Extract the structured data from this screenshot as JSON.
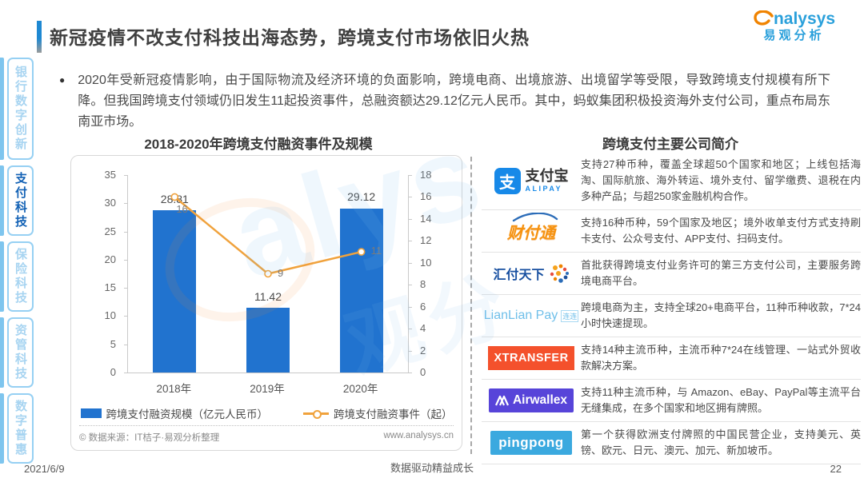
{
  "header": {
    "title": "新冠疫情不改支付科技出海态势，跨境支付市场依旧火热",
    "logo": {
      "brand": "nalysys",
      "brand_cn": "易观分析"
    }
  },
  "sidebar": {
    "items": [
      {
        "label": "银行数字创新",
        "active": false
      },
      {
        "label": "支付科技",
        "active": true
      },
      {
        "label": "保险科技",
        "active": false
      },
      {
        "label": "资管科技",
        "active": false
      },
      {
        "label": "数字普惠",
        "active": false
      }
    ]
  },
  "summary": {
    "bullet": "●",
    "text": "2020年受新冠疫情影响，由于国际物流及经济环境的负面影响，跨境电商、出境旅游、出境留学等受限，导致跨境支付规模有所下降。但我国跨境支付领域仍旧发生11起投资事件，总融资额达29.12亿元人民币。其中，蚂蚁集团积极投资海外支付公司，重点布局东南亚市场。"
  },
  "chart": {
    "title": "2018-2020年跨境支付融资事件及规模",
    "source_left": "© 数据来源：IT桔子·易观分析整理",
    "source_right": "www.analysys.cn"
  },
  "chart_data": {
    "type": "bar",
    "categories": [
      "2018年",
      "2019年",
      "2020年"
    ],
    "series": [
      {
        "name": "跨境支付融资规模（亿元人民币）",
        "type": "bar",
        "axis": "left",
        "values": [
          28.81,
          11.42,
          29.12
        ],
        "color": "#2173CF"
      },
      {
        "name": "跨境支付融资事件（起）",
        "type": "line",
        "axis": "right",
        "values": [
          16,
          9,
          11
        ],
        "color": "#F0A23C"
      }
    ],
    "left_axis": {
      "min": 0,
      "max": 35,
      "step": 5
    },
    "right_axis": {
      "min": 0,
      "max": 18,
      "step": 2
    },
    "grid": false,
    "legend_position": "bottom"
  },
  "companies": {
    "title": "跨境支付主要公司简介",
    "rows": [
      {
        "logo": {
          "type": "alipay",
          "icon_char": "支",
          "main": "支付宝",
          "sub": "ALIPAY"
        },
        "desc": "支持27种币种，覆盖全球超50个国家和地区；上线包括海淘、国际航旅、海外转运、境外支付、留学缴费、退税在内多种产品；与超250家金融机构合作。"
      },
      {
        "logo": {
          "type": "tenpay",
          "main": "财付通"
        },
        "desc": "支持16种币种，59个国家及地区；境外收单支付方式支持刷卡支付、公众号支付、APP支付、扫码支付。"
      },
      {
        "logo": {
          "type": "huifu",
          "main": "汇付天下"
        },
        "desc": "首批获得跨境支付业务许可的第三方支付公司，主要服务跨境电商平台。"
      },
      {
        "logo": {
          "type": "lianlian",
          "main": "LianLian Pay",
          "sub": "连连"
        },
        "desc": "跨境电商为主，支持全球20+电商平台，11种币种收款，7*24 小时快速提现。"
      },
      {
        "logo": {
          "type": "xtransfer",
          "main": "XTRANSFER"
        },
        "desc": "支持14种主流币种，主流币种7*24在线管理、一站式外贸收款解决方案。"
      },
      {
        "logo": {
          "type": "airwallex",
          "main": "Airwallex"
        },
        "desc": "支持11种主流币种，与 Amazon、eBay、PayPal等主流平台无缝集成，在多个国家和地区拥有牌照。"
      },
      {
        "logo": {
          "type": "pingpong",
          "main": "pingpong"
        },
        "desc": "第一个获得欧洲支付牌照的中国民营企业，支持美元、英镑、欧元、日元、澳元、加元、新加坡币。"
      }
    ]
  },
  "footer": {
    "date": "2021/6/9",
    "slogan": "数据驱动精益成长",
    "page": "22"
  }
}
